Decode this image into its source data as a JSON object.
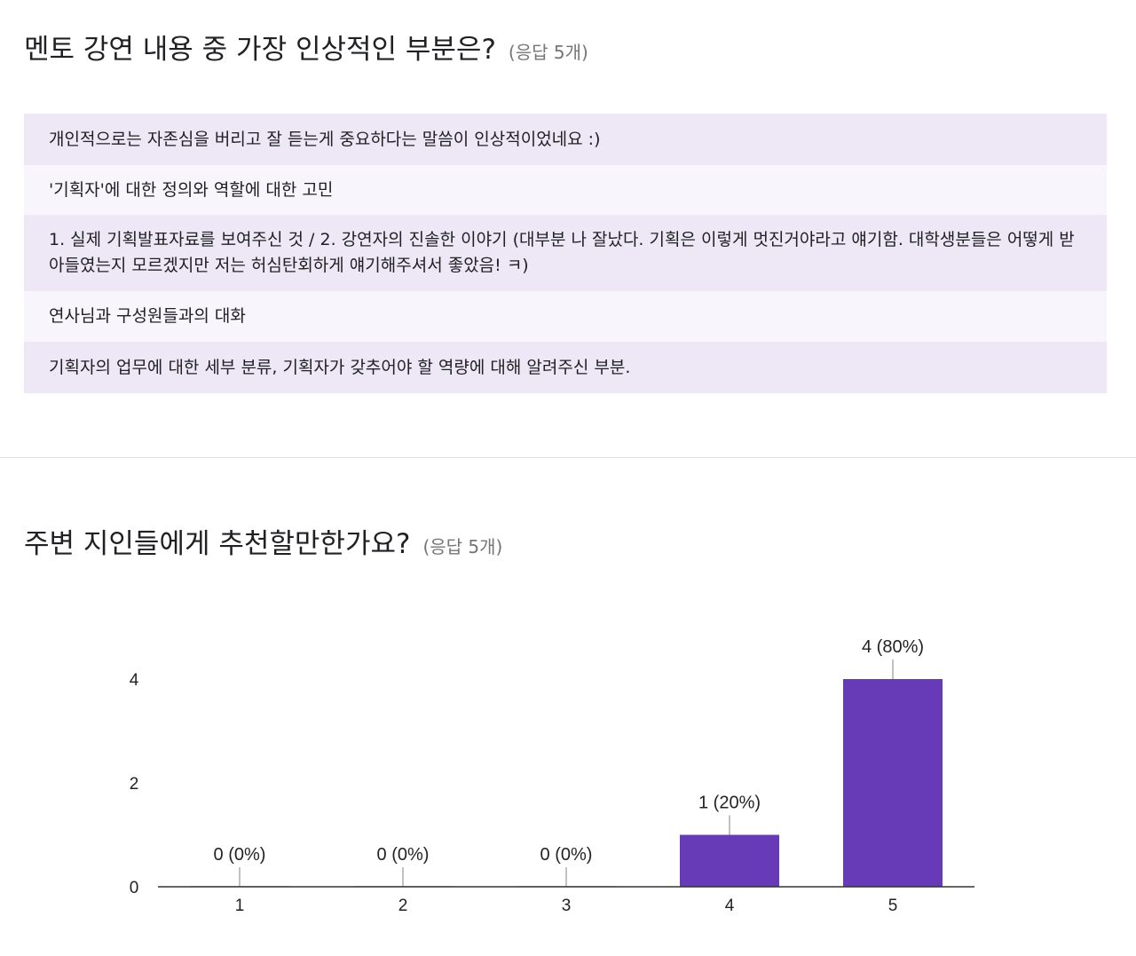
{
  "q1": {
    "title": "멘토 강연 내용 중 가장 인상적인 부분은?",
    "count": "(응답 5개)",
    "responses": [
      "개인적으로는 자존심을 버리고 잘 듣는게 중요하다는 말씀이 인상적이었네요 :)",
      "'기획자'에 대한 정의와 역할에 대한 고민",
      "1. 실제 기획발표자료를 보여주신 것 / 2. 강연자의 진솔한 이야기 (대부분 나 잘났다. 기획은 이렇게 멋진거야라고 얘기함. 대학생분들은 어떻게 받아들였는지 모르겠지만 저는 허심탄회하게 얘기해주셔서 좋았음! ㅋ)",
      "연사님과 구성원들과의 대화",
      "기획자의 업무에 대한 세부 분류, 기획자가 갖추어야 할 역량에 대해 알려주신 부분."
    ]
  },
  "q2": {
    "title": "주변 지인들에게 추천할만한가요?",
    "count": "(응답 5개)"
  },
  "chart_data": {
    "type": "bar",
    "categories": [
      "1",
      "2",
      "3",
      "4",
      "5"
    ],
    "values": [
      0,
      0,
      0,
      1,
      4
    ],
    "data_labels": [
      "0 (0%)",
      "0 (0%)",
      "0 (0%)",
      "1 (20%)",
      "4 (80%)"
    ],
    "yticks": [
      "0",
      "2",
      "4"
    ],
    "ylim": [
      0,
      4
    ],
    "bar_color": "#673ab7",
    "grid": false
  }
}
